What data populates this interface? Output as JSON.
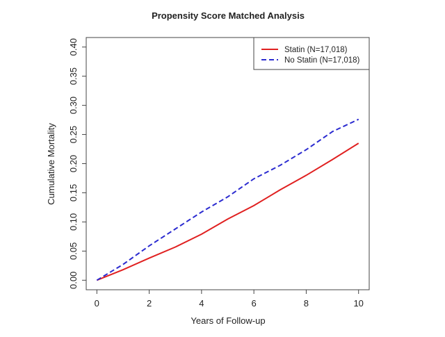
{
  "chart_data": {
    "type": "line",
    "title": "Propensity Score Matched Analysis",
    "xlabel": "Years of Follow-up",
    "ylabel": "Cumulative Mortality",
    "xlim": [
      0,
      10
    ],
    "ylim": [
      0,
      0.4
    ],
    "xticks": [
      "0",
      "2",
      "4",
      "6",
      "8",
      "10"
    ],
    "yticks": [
      "0.00",
      "0.05",
      "0.10",
      "0.15",
      "0.20",
      "0.25",
      "0.30",
      "0.35",
      "0.40"
    ],
    "grid": false,
    "legend_position": "top-right",
    "x": [
      0,
      1,
      2,
      3,
      4,
      5,
      6,
      7,
      8,
      9,
      10
    ],
    "series": [
      {
        "name": "Statin (N=17,018)",
        "color": "#e02020",
        "style": "solid",
        "values": [
          0,
          0.018,
          0.038,
          0.057,
          0.079,
          0.105,
          0.128,
          0.155,
          0.18,
          0.207,
          0.235
        ]
      },
      {
        "name": "No Statin (N=17,018)",
        "color": "#2b2bd0",
        "style": "dashed",
        "values": [
          0,
          0.027,
          0.059,
          0.088,
          0.117,
          0.143,
          0.174,
          0.197,
          0.224,
          0.255,
          0.276
        ]
      }
    ]
  }
}
